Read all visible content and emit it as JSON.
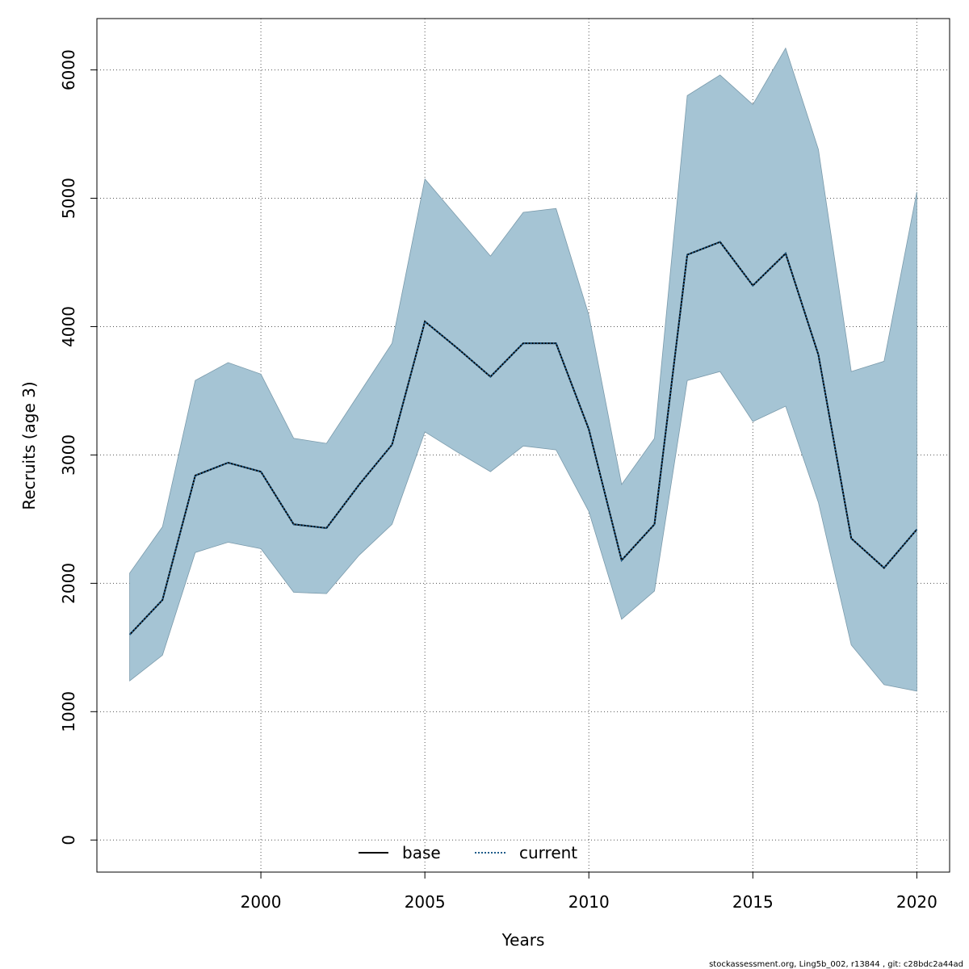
{
  "chart_data": {
    "type": "area",
    "xlabel": "Years",
    "ylabel": "Recruits (age 3)",
    "xlim": [
      1995,
      2021
    ],
    "ylim": [
      -250,
      6400
    ],
    "x_ticks": [
      2000,
      2005,
      2010,
      2015,
      2020
    ],
    "y_ticks": [
      0,
      1000,
      2000,
      3000,
      4000,
      5000,
      6000
    ],
    "grid": true,
    "x": [
      1996,
      1997,
      1998,
      1999,
      2000,
      2001,
      2002,
      2003,
      2004,
      2005,
      2006,
      2007,
      2008,
      2009,
      2010,
      2011,
      2012,
      2013,
      2014,
      2015,
      2016,
      2017,
      2018,
      2019,
      2020
    ],
    "series": [
      {
        "name": "base",
        "style": "solid",
        "color": "#000000",
        "values": [
          1600,
          1870,
          2840,
          2940,
          2870,
          2460,
          2430,
          2770,
          3080,
          4040,
          3830,
          3610,
          3870,
          3870,
          3200,
          2180,
          2460,
          4560,
          4660,
          4320,
          4570,
          3780,
          2350,
          2120,
          2420
        ]
      },
      {
        "name": "current",
        "style": "dotted",
        "color": "#1f5d8b",
        "values": [
          1600,
          1870,
          2840,
          2940,
          2870,
          2460,
          2430,
          2770,
          3080,
          4040,
          3830,
          3610,
          3870,
          3870,
          3200,
          2180,
          2460,
          4560,
          4660,
          4320,
          4570,
          3780,
          2350,
          2120,
          2420
        ]
      }
    ],
    "interval": {
      "color": "#a5c4d4",
      "lower": [
        1240,
        1440,
        2240,
        2320,
        2270,
        1930,
        1920,
        2220,
        2460,
        3180,
        3020,
        2870,
        3070,
        3040,
        2560,
        1720,
        1940,
        3580,
        3650,
        3260,
        3380,
        2630,
        1520,
        1210,
        1160
      ],
      "upper": [
        2080,
        2440,
        3580,
        3720,
        3630,
        3130,
        3090,
        3480,
        3870,
        5150,
        4850,
        4550,
        4890,
        4920,
        4090,
        2770,
        3130,
        5800,
        5960,
        5730,
        6170,
        5380,
        3650,
        3730,
        5050
      ]
    },
    "legend": {
      "placement": "bottom-center",
      "entries": [
        "base",
        "current"
      ]
    }
  },
  "footnote": "stockassessment.org, Ling5b_002, r13844 , git: c28bdc2a44ad"
}
